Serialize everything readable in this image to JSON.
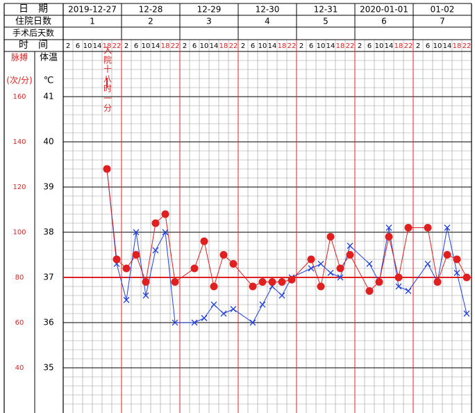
{
  "header": {
    "date_label": "日　期",
    "stay_label": "住院日数",
    "postop_label": "手术后天数",
    "time_label": "时　间",
    "pulse_label": "脉搏",
    "temp_label": "体温",
    "pulse_unit": "(次/分)",
    "temp_unit": "℃"
  },
  "days": [
    {
      "date": "2019-12-27",
      "stay": 1,
      "times": [
        2,
        6,
        10,
        14,
        18,
        22
      ]
    },
    {
      "date": "12-28",
      "stay": 2,
      "times": [
        2,
        6,
        10,
        14,
        18,
        22
      ]
    },
    {
      "date": "12-29",
      "stay": 3,
      "times": [
        2,
        6,
        10,
        14,
        18,
        22
      ]
    },
    {
      "date": "12-30",
      "stay": 4,
      "times": [
        2,
        6,
        10,
        14,
        18,
        22
      ]
    },
    {
      "date": "12-31",
      "stay": 5,
      "times": [
        2,
        6,
        10,
        14,
        18,
        22
      ]
    },
    {
      "date": "2020-01-01",
      "stay": 6,
      "times": [
        2,
        6,
        10,
        14,
        18,
        22
      ]
    },
    {
      "date": "01-02",
      "stay": 7,
      "times": [
        2,
        6,
        10,
        14,
        18,
        22
      ]
    }
  ],
  "chart_data": {
    "type": "line",
    "annotations": [
      "入院",
      "十八时一分"
    ],
    "ylim": [
      34,
      42
    ],
    "yticks": [
      35,
      36,
      37,
      38,
      39,
      40,
      41
    ],
    "y2lim": [
      20,
      180
    ],
    "y2ticks": [
      40,
      60,
      80,
      100,
      120,
      140,
      160
    ],
    "reference_line": 37,
    "grid": true,
    "series": [
      {
        "name": "体温",
        "color": "#2040e0",
        "marker": "x",
        "values": [
          null,
          null,
          null,
          null,
          39.4,
          37.3,
          36.5,
          38.0,
          36.6,
          37.6,
          38.0,
          36.0,
          null,
          36.0,
          36.1,
          36.4,
          36.2,
          36.3,
          null,
          36.0,
          36.4,
          36.8,
          36.6,
          37.0,
          null,
          37.2,
          37.3,
          37.1,
          37.0,
          37.7,
          null,
          37.3,
          36.9,
          38.1,
          36.8,
          36.7,
          null,
          37.3,
          36.9,
          38.1,
          37.1,
          36.2
        ]
      },
      {
        "name": "脉搏",
        "color": "#e02020",
        "marker": "dot",
        "axis": "y2",
        "values": [
          null,
          null,
          null,
          null,
          128,
          88,
          84,
          90,
          78,
          104,
          108,
          78,
          null,
          84,
          96,
          76,
          90,
          86,
          null,
          76,
          78,
          78,
          78,
          79,
          null,
          88,
          76,
          98,
          84,
          90,
          null,
          74,
          78,
          98,
          80,
          102,
          null,
          102,
          78,
          90,
          88,
          80
        ]
      }
    ]
  }
}
